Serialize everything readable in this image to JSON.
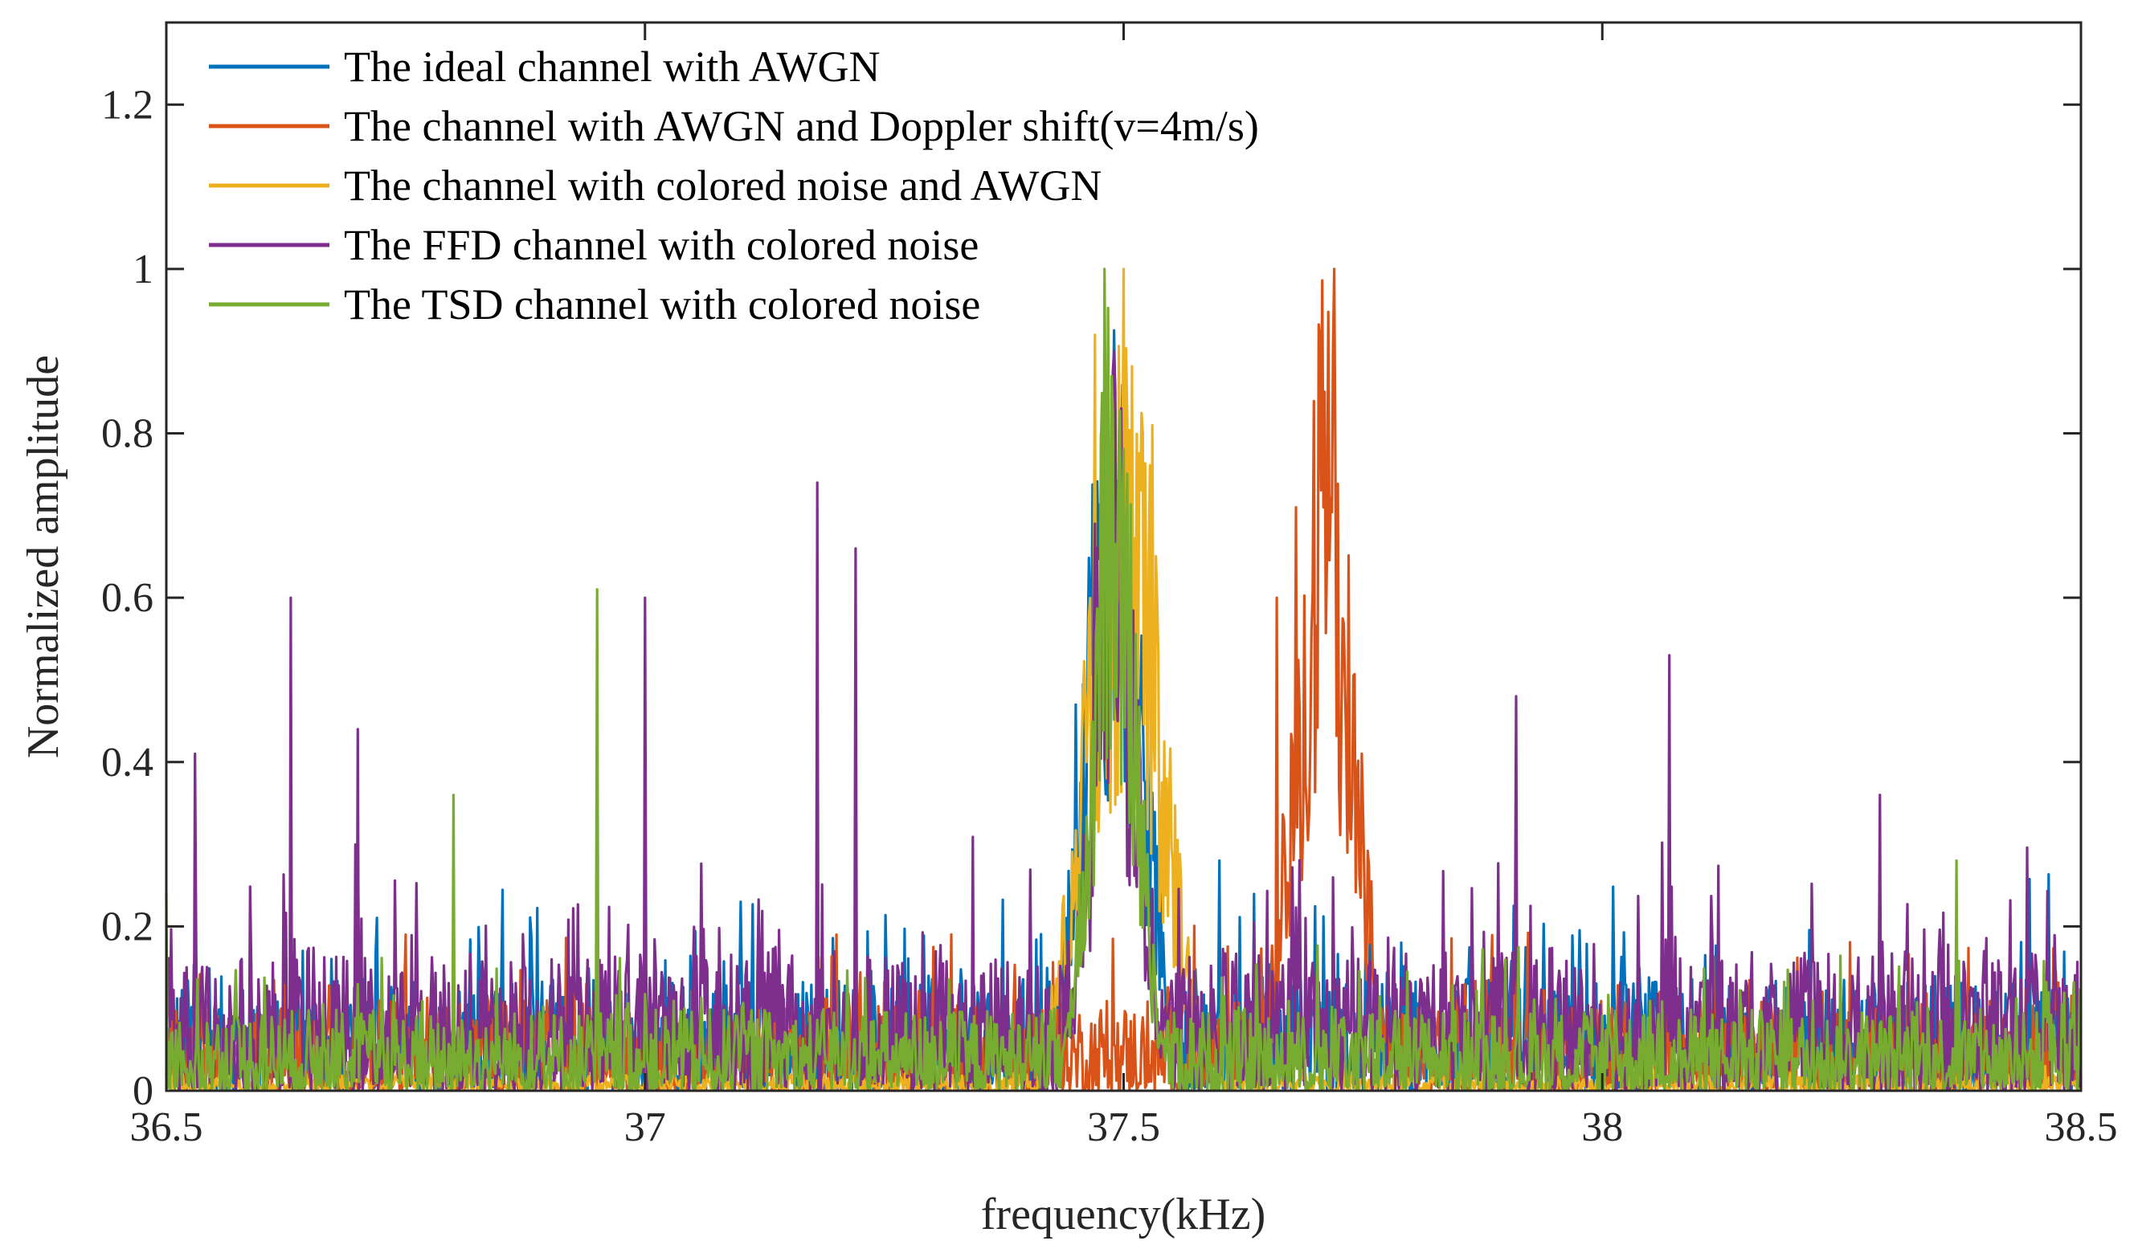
{
  "chart_data": {
    "type": "line",
    "title": "",
    "xlabel": "frequency(kHz)",
    "ylabel": "Normalized amplitude",
    "xlim": [
      36.5,
      38.5
    ],
    "ylim": [
      0,
      1.3
    ],
    "xticks": [
      36.5,
      37,
      37.5,
      38,
      38.5
    ],
    "xtick_labels": [
      "36.5",
      "37",
      "37.5",
      "38",
      "38.5"
    ],
    "yticks": [
      0,
      0.2,
      0.4,
      0.6,
      0.8,
      1,
      1.2
    ],
    "ytick_labels": [
      "0",
      "0.2",
      "0.4",
      "0.6",
      "0.8",
      "1",
      "1.2"
    ],
    "grid": false,
    "legend_position": "top-left",
    "series": [
      {
        "name": "The ideal channel with AWGN",
        "color": "#0072BD",
        "noise_floor": 0.14,
        "peak_center": 37.49,
        "peak_width": 0.04,
        "peak_max": 1.0,
        "spikes": [
          [
            36.7,
            0.31
          ],
          [
            37.1,
            0.23
          ],
          [
            37.45,
            0.47
          ],
          [
            37.6,
            0.28
          ],
          [
            38.29,
            0.22
          ]
        ]
      },
      {
        "name": "The channel with AWGN and Doppler shift(v=4m/s)",
        "color": "#D95319",
        "noise_floor": 0.11,
        "peak_center": 37.71,
        "peak_width": 0.04,
        "peak_max": 1.0,
        "spikes": [
          [
            36.75,
            0.19
          ],
          [
            37.2,
            0.19
          ],
          [
            37.66,
            0.6
          ],
          [
            37.68,
            0.71
          ],
          [
            37.72,
            1.0
          ]
        ]
      },
      {
        "name": "The channel with colored noise and AWGN",
        "color": "#EDB120",
        "noise_floor": 0.02,
        "peak_center": 37.5,
        "peak_width": 0.05,
        "peak_max": 1.0,
        "spikes": [
          [
            37.47,
            0.92
          ],
          [
            37.5,
            1.0
          ],
          [
            37.53,
            0.81
          ]
        ]
      },
      {
        "name": "The FFD channel with colored noise",
        "color": "#7E2F8E",
        "noise_floor": 0.17,
        "peak_center": 37.49,
        "peak_width": 0.03,
        "peak_max": 0.9,
        "spikes": [
          [
            36.53,
            0.41
          ],
          [
            36.63,
            0.6
          ],
          [
            36.7,
            0.44
          ],
          [
            37.0,
            0.6
          ],
          [
            37.18,
            0.74
          ],
          [
            37.22,
            0.66
          ],
          [
            37.47,
            0.69
          ],
          [
            37.49,
            0.9
          ],
          [
            37.91,
            0.48
          ],
          [
            38.07,
            0.53
          ],
          [
            38.29,
            0.36
          ]
        ]
      },
      {
        "name": "The TSD channel with colored noise",
        "color": "#77AC30",
        "noise_floor": 0.1,
        "peak_center": 37.49,
        "peak_width": 0.03,
        "peak_max": 1.0,
        "spikes": [
          [
            36.5,
            0.24
          ],
          [
            36.8,
            0.36
          ],
          [
            36.95,
            0.61
          ],
          [
            37.48,
            1.0
          ],
          [
            38.37,
            0.28
          ]
        ]
      }
    ]
  }
}
